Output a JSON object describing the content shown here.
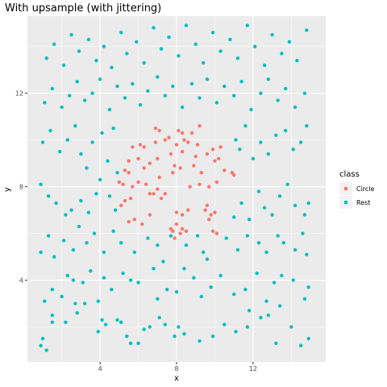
{
  "chart_data": {
    "type": "scatter",
    "title": "With upsample (with jittering)",
    "xlabel": "x",
    "ylabel": "y",
    "xlim": [
      0.2,
      15.8
    ],
    "ylim": [
      0.5,
      15.3
    ],
    "x_ticks": [
      "4",
      "8",
      "12"
    ],
    "x_tick_values": [
      4,
      8,
      12
    ],
    "y_ticks": [
      "4",
      "8",
      "12"
    ],
    "y_tick_values": [
      4,
      8,
      12
    ],
    "grid": true,
    "legend": {
      "title": "class",
      "placement": "right",
      "entries": [
        "Circle",
        "Rest"
      ]
    },
    "colors": {
      "Circle": "#F8766D",
      "Rest": "#00BFC4",
      "panel": "#EBEBEB",
      "grid": "#FFFFFF"
    },
    "series": [
      {
        "name": "Circle",
        "points": [
          [
            6.9,
            10.5
          ],
          [
            7.1,
            10.4
          ],
          [
            7.6,
            10.1
          ],
          [
            8.1,
            10.4
          ],
          [
            8.3,
            10.3
          ],
          [
            8.4,
            10.0
          ],
          [
            8.8,
            10.3
          ],
          [
            9.2,
            10.6
          ],
          [
            6.1,
            9.8
          ],
          [
            6.3,
            9.7
          ],
          [
            5.7,
            9.7
          ],
          [
            6.9,
            9.9
          ],
          [
            7.4,
            10.0
          ],
          [
            8.0,
            9.8
          ],
          [
            8.6,
            9.9
          ],
          [
            9.1,
            9.8
          ],
          [
            9.9,
            9.6
          ],
          [
            10.3,
            9.7
          ],
          [
            5.5,
            9.1
          ],
          [
            6.0,
            9.2
          ],
          [
            6.6,
            9.0
          ],
          [
            7.0,
            9.2
          ],
          [
            7.7,
            9.4
          ],
          [
            8.3,
            9.5
          ],
          [
            9.0,
            9.3
          ],
          [
            9.6,
            9.4
          ],
          [
            10.0,
            9.1
          ],
          [
            10.2,
            9.2
          ],
          [
            5.3,
            8.7
          ],
          [
            5.5,
            8.6
          ],
          [
            6.3,
            8.8
          ],
          [
            7.1,
            8.4
          ],
          [
            7.8,
            8.6
          ],
          [
            7.9,
            8.9
          ],
          [
            8.2,
            8.8
          ],
          [
            8.9,
            8.9
          ],
          [
            9.3,
            8.6
          ],
          [
            10.5,
            8.7
          ],
          [
            5.0,
            8.2
          ],
          [
            5.2,
            8.1
          ],
          [
            5.7,
            8.0
          ],
          [
            6.0,
            8.2
          ],
          [
            6.4,
            8.1
          ],
          [
            7.0,
            7.9
          ],
          [
            7.4,
            7.7
          ],
          [
            8.7,
            8.0
          ],
          [
            9.2,
            8.1
          ],
          [
            9.7,
            8.0
          ],
          [
            10.1,
            8.2
          ],
          [
            10.9,
            8.6
          ],
          [
            11.0,
            8.5
          ],
          [
            5.1,
            7.2
          ],
          [
            5.3,
            7.4
          ],
          [
            5.6,
            7.5
          ],
          [
            6.6,
            7.7
          ],
          [
            6.8,
            7.7
          ],
          [
            7.2,
            7.5
          ],
          [
            9.6,
            7.2
          ],
          [
            9.5,
            7.0
          ],
          [
            9.8,
            6.8
          ],
          [
            10.0,
            6.9
          ],
          [
            5.5,
            6.5
          ],
          [
            5.8,
            6.6
          ],
          [
            6.2,
            6.4
          ],
          [
            6.6,
            6.8
          ],
          [
            8.0,
            6.9
          ],
          [
            8.3,
            6.8
          ],
          [
            8.6,
            7.0
          ],
          [
            9.7,
            6.6
          ],
          [
            9.9,
            6.1
          ],
          [
            10.1,
            6.0
          ],
          [
            7.7,
            6.2
          ],
          [
            7.9,
            5.8
          ],
          [
            8.0,
            6.4
          ],
          [
            8.2,
            6.0
          ],
          [
            8.3,
            6.2
          ],
          [
            8.5,
            6.1
          ],
          [
            7.8,
            6.1
          ]
        ]
      },
      {
        "name": "Rest",
        "points": [
          [
            0.9,
            1.2
          ],
          [
            1.0,
            1.5
          ],
          [
            1.2,
            1.0
          ],
          [
            1.5,
            2.2
          ],
          [
            1.5,
            2.5
          ],
          [
            2.2,
            2.2
          ],
          [
            2.7,
            3.0
          ],
          [
            2.8,
            2.6
          ],
          [
            3.2,
            3.0
          ],
          [
            3.9,
            1.8
          ],
          [
            4.1,
            2.3
          ],
          [
            4.3,
            2.1
          ],
          [
            4.9,
            2.3
          ],
          [
            5.1,
            2.2
          ],
          [
            5.4,
            1.6
          ],
          [
            5.6,
            1.3
          ],
          [
            6.0,
            1.3
          ],
          [
            6.3,
            1.9
          ],
          [
            6.6,
            2.0
          ],
          [
            7.1,
            2.4
          ],
          [
            7.4,
            2.1
          ],
          [
            7.9,
            1.6
          ],
          [
            8.1,
            2.0
          ],
          [
            8.4,
            1.7
          ],
          [
            9.2,
            1.4
          ],
          [
            9.9,
            1.6
          ],
          [
            10.5,
            2.1
          ],
          [
            11.1,
            1.8
          ],
          [
            11.7,
            2.0
          ],
          [
            11.8,
            2.7
          ],
          [
            12.4,
            2.4
          ],
          [
            12.8,
            2.5
          ],
          [
            13.2,
            1.3
          ],
          [
            13.4,
            2.9
          ],
          [
            14.0,
            2.0
          ],
          [
            14.5,
            1.2
          ],
          [
            14.9,
            1.5
          ],
          [
            1.1,
            3.1
          ],
          [
            1.5,
            3.6
          ],
          [
            2.0,
            3.3
          ],
          [
            2.3,
            4.2
          ],
          [
            2.6,
            4.0
          ],
          [
            3.1,
            3.9
          ],
          [
            3.5,
            4.4
          ],
          [
            3.9,
            3.1
          ],
          [
            4.2,
            4.1
          ],
          [
            4.6,
            3.6
          ],
          [
            5.2,
            4.3
          ],
          [
            5.6,
            4.0
          ],
          [
            6.0,
            3.9
          ],
          [
            6.8,
            4.5
          ],
          [
            7.0,
            3.2
          ],
          [
            7.5,
            3.6
          ],
          [
            8.0,
            3.5
          ],
          [
            8.4,
            4.5
          ],
          [
            8.9,
            4.1
          ],
          [
            9.3,
            3.3
          ],
          [
            9.8,
            3.7
          ],
          [
            10.3,
            4.2
          ],
          [
            11.0,
            3.4
          ],
          [
            11.6,
            3.6
          ],
          [
            12.2,
            4.3
          ],
          [
            12.7,
            3.1
          ],
          [
            13.1,
            3.9
          ],
          [
            13.5,
            4.2
          ],
          [
            14.1,
            4.0
          ],
          [
            14.7,
            3.2
          ],
          [
            14.9,
            3.7
          ],
          [
            0.9,
            5.2
          ],
          [
            1.3,
            5.9
          ],
          [
            1.6,
            5.0
          ],
          [
            2.1,
            5.7
          ],
          [
            2.6,
            5.3
          ],
          [
            2.9,
            6.3
          ],
          [
            3.3,
            5.6
          ],
          [
            3.7,
            6.0
          ],
          [
            4.2,
            5.2
          ],
          [
            4.7,
            6.1
          ],
          [
            5.1,
            5.6
          ],
          [
            5.8,
            5.2
          ],
          [
            6.5,
            5.8
          ],
          [
            7.0,
            5.5
          ],
          [
            7.3,
            4.8
          ],
          [
            7.7,
            5.9
          ],
          [
            8.5,
            5.5
          ],
          [
            9.1,
            5.9
          ],
          [
            9.4,
            5.2
          ],
          [
            9.6,
            4.9
          ],
          [
            10.6,
            5.8
          ],
          [
            11.2,
            5.3
          ],
          [
            11.7,
            5.9
          ],
          [
            12.3,
            5.6
          ],
          [
            12.7,
            5.2
          ],
          [
            13.3,
            5.9
          ],
          [
            13.6,
            5.6
          ],
          [
            14.2,
            5.3
          ],
          [
            14.6,
            6.0
          ],
          [
            14.8,
            5.1
          ],
          [
            0.9,
            8.1
          ],
          [
            1.3,
            7.6
          ],
          [
            1.7,
            7.3
          ],
          [
            2.2,
            6.8
          ],
          [
            2.5,
            7.0
          ],
          [
            3.0,
            7.4
          ],
          [
            3.4,
            6.9
          ],
          [
            3.8,
            7.7
          ],
          [
            4.0,
            8.3
          ],
          [
            4.5,
            7.6
          ],
          [
            4.9,
            8.6
          ],
          [
            4.8,
            7.0
          ],
          [
            11.0,
            6.7
          ],
          [
            11.4,
            7.3
          ],
          [
            11.8,
            6.6
          ],
          [
            12.3,
            7.8
          ],
          [
            12.6,
            7.1
          ],
          [
            13.0,
            6.8
          ],
          [
            13.4,
            7.6
          ],
          [
            13.8,
            8.1
          ],
          [
            14.2,
            7.2
          ],
          [
            14.7,
            6.8
          ],
          [
            14.9,
            7.3
          ],
          [
            1.0,
            9.9
          ],
          [
            1.4,
            10.4
          ],
          [
            1.9,
            9.5
          ],
          [
            2.3,
            10.0
          ],
          [
            2.7,
            10.6
          ],
          [
            3.0,
            9.4
          ],
          [
            3.3,
            8.8
          ],
          [
            3.6,
            9.9
          ],
          [
            4.1,
            10.3
          ],
          [
            4.4,
            9.1
          ],
          [
            4.7,
            10.5
          ],
          [
            11.1,
            10.0
          ],
          [
            11.3,
            9.6
          ],
          [
            11.6,
            10.6
          ],
          [
            12.0,
            9.2
          ],
          [
            12.4,
            9.9
          ],
          [
            12.8,
            9.4
          ],
          [
            13.2,
            10.2
          ],
          [
            13.7,
            10.4
          ],
          [
            14.1,
            9.6
          ],
          [
            14.5,
            9.9
          ],
          [
            14.8,
            10.6
          ],
          [
            1.1,
            11.6
          ],
          [
            1.5,
            12.2
          ],
          [
            2.0,
            11.4
          ],
          [
            2.4,
            11.9
          ],
          [
            2.8,
            12.5
          ],
          [
            3.2,
            11.7
          ],
          [
            3.6,
            12.0
          ],
          [
            4.0,
            12.6
          ],
          [
            4.5,
            11.3
          ],
          [
            4.9,
            12.3
          ],
          [
            5.3,
            11.8
          ],
          [
            5.7,
            12.4
          ],
          [
            6.1,
            11.5
          ],
          [
            6.5,
            12.1
          ],
          [
            7.0,
            12.7
          ],
          [
            7.4,
            11.9
          ],
          [
            7.8,
            12.3
          ],
          [
            8.3,
            11.4
          ],
          [
            8.8,
            12.4
          ],
          [
            9.2,
            11.8
          ],
          [
            9.6,
            12.6
          ],
          [
            10.1,
            11.6
          ],
          [
            10.5,
            12.3
          ],
          [
            11.0,
            11.9
          ],
          [
            11.4,
            12.5
          ],
          [
            11.9,
            11.3
          ],
          [
            12.4,
            12.0
          ],
          [
            12.8,
            12.6
          ],
          [
            13.3,
            11.7
          ],
          [
            13.7,
            12.2
          ],
          [
            14.2,
            11.4
          ],
          [
            14.7,
            12.0
          ],
          [
            1.2,
            13.5
          ],
          [
            1.6,
            14.1
          ],
          [
            2.1,
            13.2
          ],
          [
            2.5,
            14.5
          ],
          [
            2.9,
            13.8
          ],
          [
            3.4,
            14.3
          ],
          [
            3.8,
            13.4
          ],
          [
            4.2,
            14.0
          ],
          [
            4.6,
            13.1
          ],
          [
            5.1,
            14.6
          ],
          [
            5.4,
            13.7
          ],
          [
            5.9,
            14.2
          ],
          [
            6.3,
            13.3
          ],
          [
            6.8,
            14.8
          ],
          [
            7.2,
            13.9
          ],
          [
            7.6,
            14.4
          ],
          [
            8.1,
            13.6
          ],
          [
            8.5,
            14.9
          ],
          [
            9.0,
            14.1
          ],
          [
            9.4,
            13.3
          ],
          [
            9.9,
            14.6
          ],
          [
            10.3,
            13.8
          ],
          [
            10.8,
            14.3
          ],
          [
            11.2,
            13.5
          ],
          [
            11.7,
            14.9
          ],
          [
            12.1,
            14.0
          ],
          [
            12.6,
            13.2
          ],
          [
            13.0,
            14.5
          ],
          [
            13.5,
            13.7
          ],
          [
            13.9,
            14.2
          ],
          [
            14.3,
            13.4
          ],
          [
            14.8,
            14.7
          ]
        ]
      }
    ]
  }
}
